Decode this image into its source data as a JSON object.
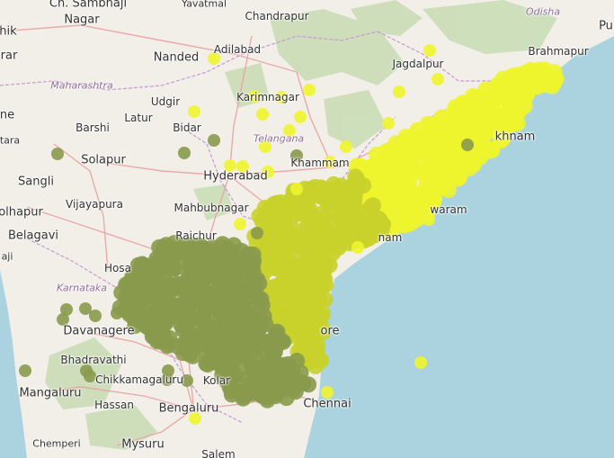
{
  "colors": {
    "sea": "#aad3df",
    "land": "#f2efe9",
    "forest": "#c8dcb4",
    "road": "#e9a3a3",
    "state_border": "#c69ad4",
    "bright_yellow": "#eef52c",
    "olive_yellow": "#c8d22a",
    "olive_green": "#8a9a4c"
  },
  "places": [
    {
      "id": "ch-sambhaji",
      "name": "Ch. Sambhaji"
    },
    {
      "id": "yavatmal",
      "name": "Yavatmal"
    },
    {
      "id": "chandrapur",
      "name": "Chandrapur"
    },
    {
      "id": "odisha",
      "name": "Odisha"
    },
    {
      "id": "hik",
      "name": "hik"
    },
    {
      "id": "nagar",
      "name": "Nagar"
    },
    {
      "id": "adilabad",
      "name": "Adilabad"
    },
    {
      "id": "jagdalpur",
      "name": "Jagdalpur"
    },
    {
      "id": "brahmapur",
      "name": "Brahmapur"
    },
    {
      "id": "pu",
      "name": "Pu"
    },
    {
      "id": "rar",
      "name": "rar"
    },
    {
      "id": "nanded",
      "name": "Nanded"
    },
    {
      "id": "maharashtra",
      "name": "Maharashtra"
    },
    {
      "id": "udgir",
      "name": "Udgir"
    },
    {
      "id": "karimnagar",
      "name": "Karimnagar"
    },
    {
      "id": "ne",
      "name": "ne"
    },
    {
      "id": "latur",
      "name": "Latur"
    },
    {
      "id": "barshi",
      "name": "Barshi"
    },
    {
      "id": "bidar",
      "name": "Bidar"
    },
    {
      "id": "tara",
      "name": "tara"
    },
    {
      "id": "telangana",
      "name": "Telangana"
    },
    {
      "id": "khnam",
      "name": "khnam"
    },
    {
      "id": "solapur",
      "name": "Solapur"
    },
    {
      "id": "khammam",
      "name": "Khammam"
    },
    {
      "id": "hyderabad",
      "name": "Hyderabad"
    },
    {
      "id": "sangli",
      "name": "Sangli"
    },
    {
      "id": "vijayapura",
      "name": "Vijayapura"
    },
    {
      "id": "mahbubnagar",
      "name": "Mahbubnagar"
    },
    {
      "id": "waram",
      "name": "waram"
    },
    {
      "id": "olhapur",
      "name": "olhapur"
    },
    {
      "id": "belagavi",
      "name": "Belagavi"
    },
    {
      "id": "raichur",
      "name": "Raichur"
    },
    {
      "id": "nam",
      "name": "nam"
    },
    {
      "id": "aji",
      "name": "aji"
    },
    {
      "id": "hosa",
      "name": "Hosa"
    },
    {
      "id": "karnataka",
      "name": "Karnataka"
    },
    {
      "id": "davanagere",
      "name": "Davanagere"
    },
    {
      "id": "ore",
      "name": "ore"
    },
    {
      "id": "bhadravathi",
      "name": "Bhadravathi"
    },
    {
      "id": "mangaluru",
      "name": "Mangaluru"
    },
    {
      "id": "chikkamagaluru",
      "name": "Chikkamagaluru"
    },
    {
      "id": "kolar",
      "name": "Kolar"
    },
    {
      "id": "chennai",
      "name": "Chennai"
    },
    {
      "id": "hassan",
      "name": "Hassan"
    },
    {
      "id": "bengaluru",
      "name": "Bengaluru"
    },
    {
      "id": "chemperi",
      "name": "Chemperi"
    },
    {
      "id": "mysuru",
      "name": "Mysuru"
    },
    {
      "id": "salem",
      "name": "Salem"
    }
  ]
}
